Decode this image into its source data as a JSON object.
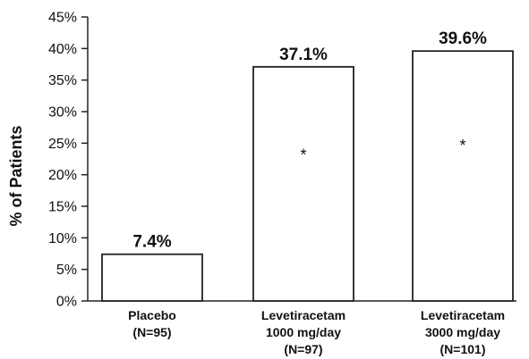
{
  "chart_data": {
    "type": "bar",
    "title": "",
    "xlabel": "",
    "ylabel": "% of Patients",
    "ylim": [
      0,
      45
    ],
    "yticks": [
      "0%",
      "5%",
      "10%",
      "15%",
      "20%",
      "25%",
      "30%",
      "35%",
      "40%",
      "45%"
    ],
    "ytick_values": [
      0,
      5,
      10,
      15,
      20,
      25,
      30,
      35,
      40,
      45
    ],
    "categories": [
      [
        "Placebo",
        "(N=95)"
      ],
      [
        "Levetiracetam",
        "1000 mg/day",
        "(N=97)"
      ],
      [
        "Levetiracetam",
        "3000 mg/day",
        "(N=101)"
      ]
    ],
    "values": [
      7.4,
      37.1,
      39.6
    ],
    "data_labels": [
      "7.4%",
      "37.1%",
      "39.6%"
    ],
    "annotations": [
      "",
      "*",
      "*"
    ],
    "grid": false,
    "legend": "none"
  }
}
